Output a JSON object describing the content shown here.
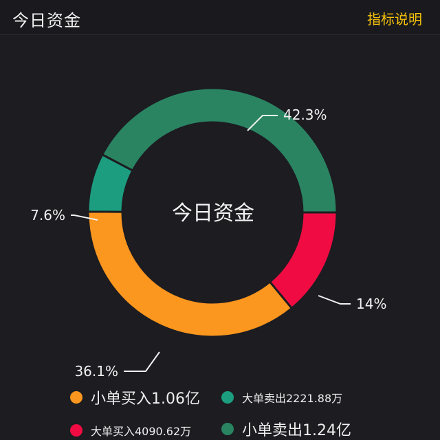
{
  "header": {
    "title": "今日资金",
    "explain_label": "指标说明"
  },
  "chart_data": {
    "type": "pie",
    "donut": true,
    "center_label": "今日资金",
    "start": "top-right, clockwise",
    "slices": [
      {
        "label": "小单卖出",
        "percent": 42.3,
        "percent_label": "42.3%",
        "amount": "1.24亿",
        "color": "#2a8462"
      },
      {
        "label": "大单买入",
        "percent": 14,
        "percent_label": "14%",
        "amount": "4090.62万",
        "color": "#f00c42"
      },
      {
        "label": "小单买入",
        "percent": 36.1,
        "percent_label": "36.1%",
        "amount": "1.06亿",
        "color": "#fb961e"
      },
      {
        "label": "大单卖出",
        "percent": 7.6,
        "percent_label": "7.6%",
        "amount": "2221.88万",
        "color": "#1c9d80"
      }
    ]
  },
  "legend": [
    {
      "text": "小单买入1.06亿",
      "color": "#fb961e"
    },
    {
      "text": "大单卖出2221.88万",
      "color": "#1c9d80"
    },
    {
      "text": "大单买入4090.62万",
      "color": "#f00c42"
    },
    {
      "text": "小单卖出1.24亿",
      "color": "#2a8462"
    }
  ]
}
